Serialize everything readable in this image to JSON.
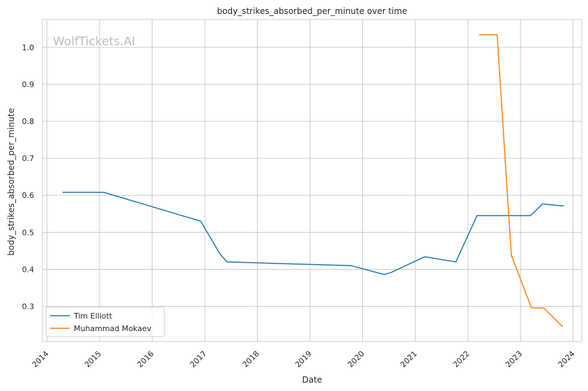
{
  "chart_data": {
    "type": "line",
    "title": "body_strikes_absorbed_per_minute over time",
    "xlabel": "Date",
    "ylabel": "body_strikes_absorbed_per_minute",
    "watermark": "WolfTickets.AI",
    "x_ticks": [
      "2014",
      "2015",
      "2016",
      "2017",
      "2018",
      "2019",
      "2020",
      "2021",
      "2022",
      "2023",
      "2024"
    ],
    "y_ticks": [
      "0.3",
      "0.4",
      "0.5",
      "0.6",
      "0.7",
      "0.8",
      "0.9",
      "1.0"
    ],
    "xlim": [
      "2013-12-01",
      "2024-03-01"
    ],
    "ylim": [
      0.205,
      1.075
    ],
    "grid": true,
    "legend_position": "lower-left",
    "series": [
      {
        "name": "Tim Elliott",
        "color": "#1f77b4",
        "points": [
          [
            "2014-04-20",
            0.608
          ],
          [
            "2015-02-01",
            0.608
          ],
          [
            "2016-12-03",
            0.53
          ],
          [
            "2017-04-15",
            0.442
          ],
          [
            "2017-06-03",
            0.42
          ],
          [
            "2019-10-12",
            0.41
          ],
          [
            "2020-05-30",
            0.386
          ],
          [
            "2020-07-20",
            0.392
          ],
          [
            "2021-03-06",
            0.434
          ],
          [
            "2021-10-09",
            0.42
          ],
          [
            "2022-03-05",
            0.545
          ],
          [
            "2023-03-11",
            0.545
          ],
          [
            "2023-06-03",
            0.577
          ],
          [
            "2023-10-28",
            0.571
          ]
        ]
      },
      {
        "name": "Muhammad Mokaev",
        "color": "#ff7f0e",
        "points": [
          [
            "2022-03-19",
            1.034
          ],
          [
            "2022-07-23",
            1.034
          ],
          [
            "2022-10-29",
            0.439
          ],
          [
            "2023-03-18",
            0.296
          ],
          [
            "2023-06-10",
            0.296
          ],
          [
            "2023-10-21",
            0.245
          ]
        ]
      }
    ]
  }
}
